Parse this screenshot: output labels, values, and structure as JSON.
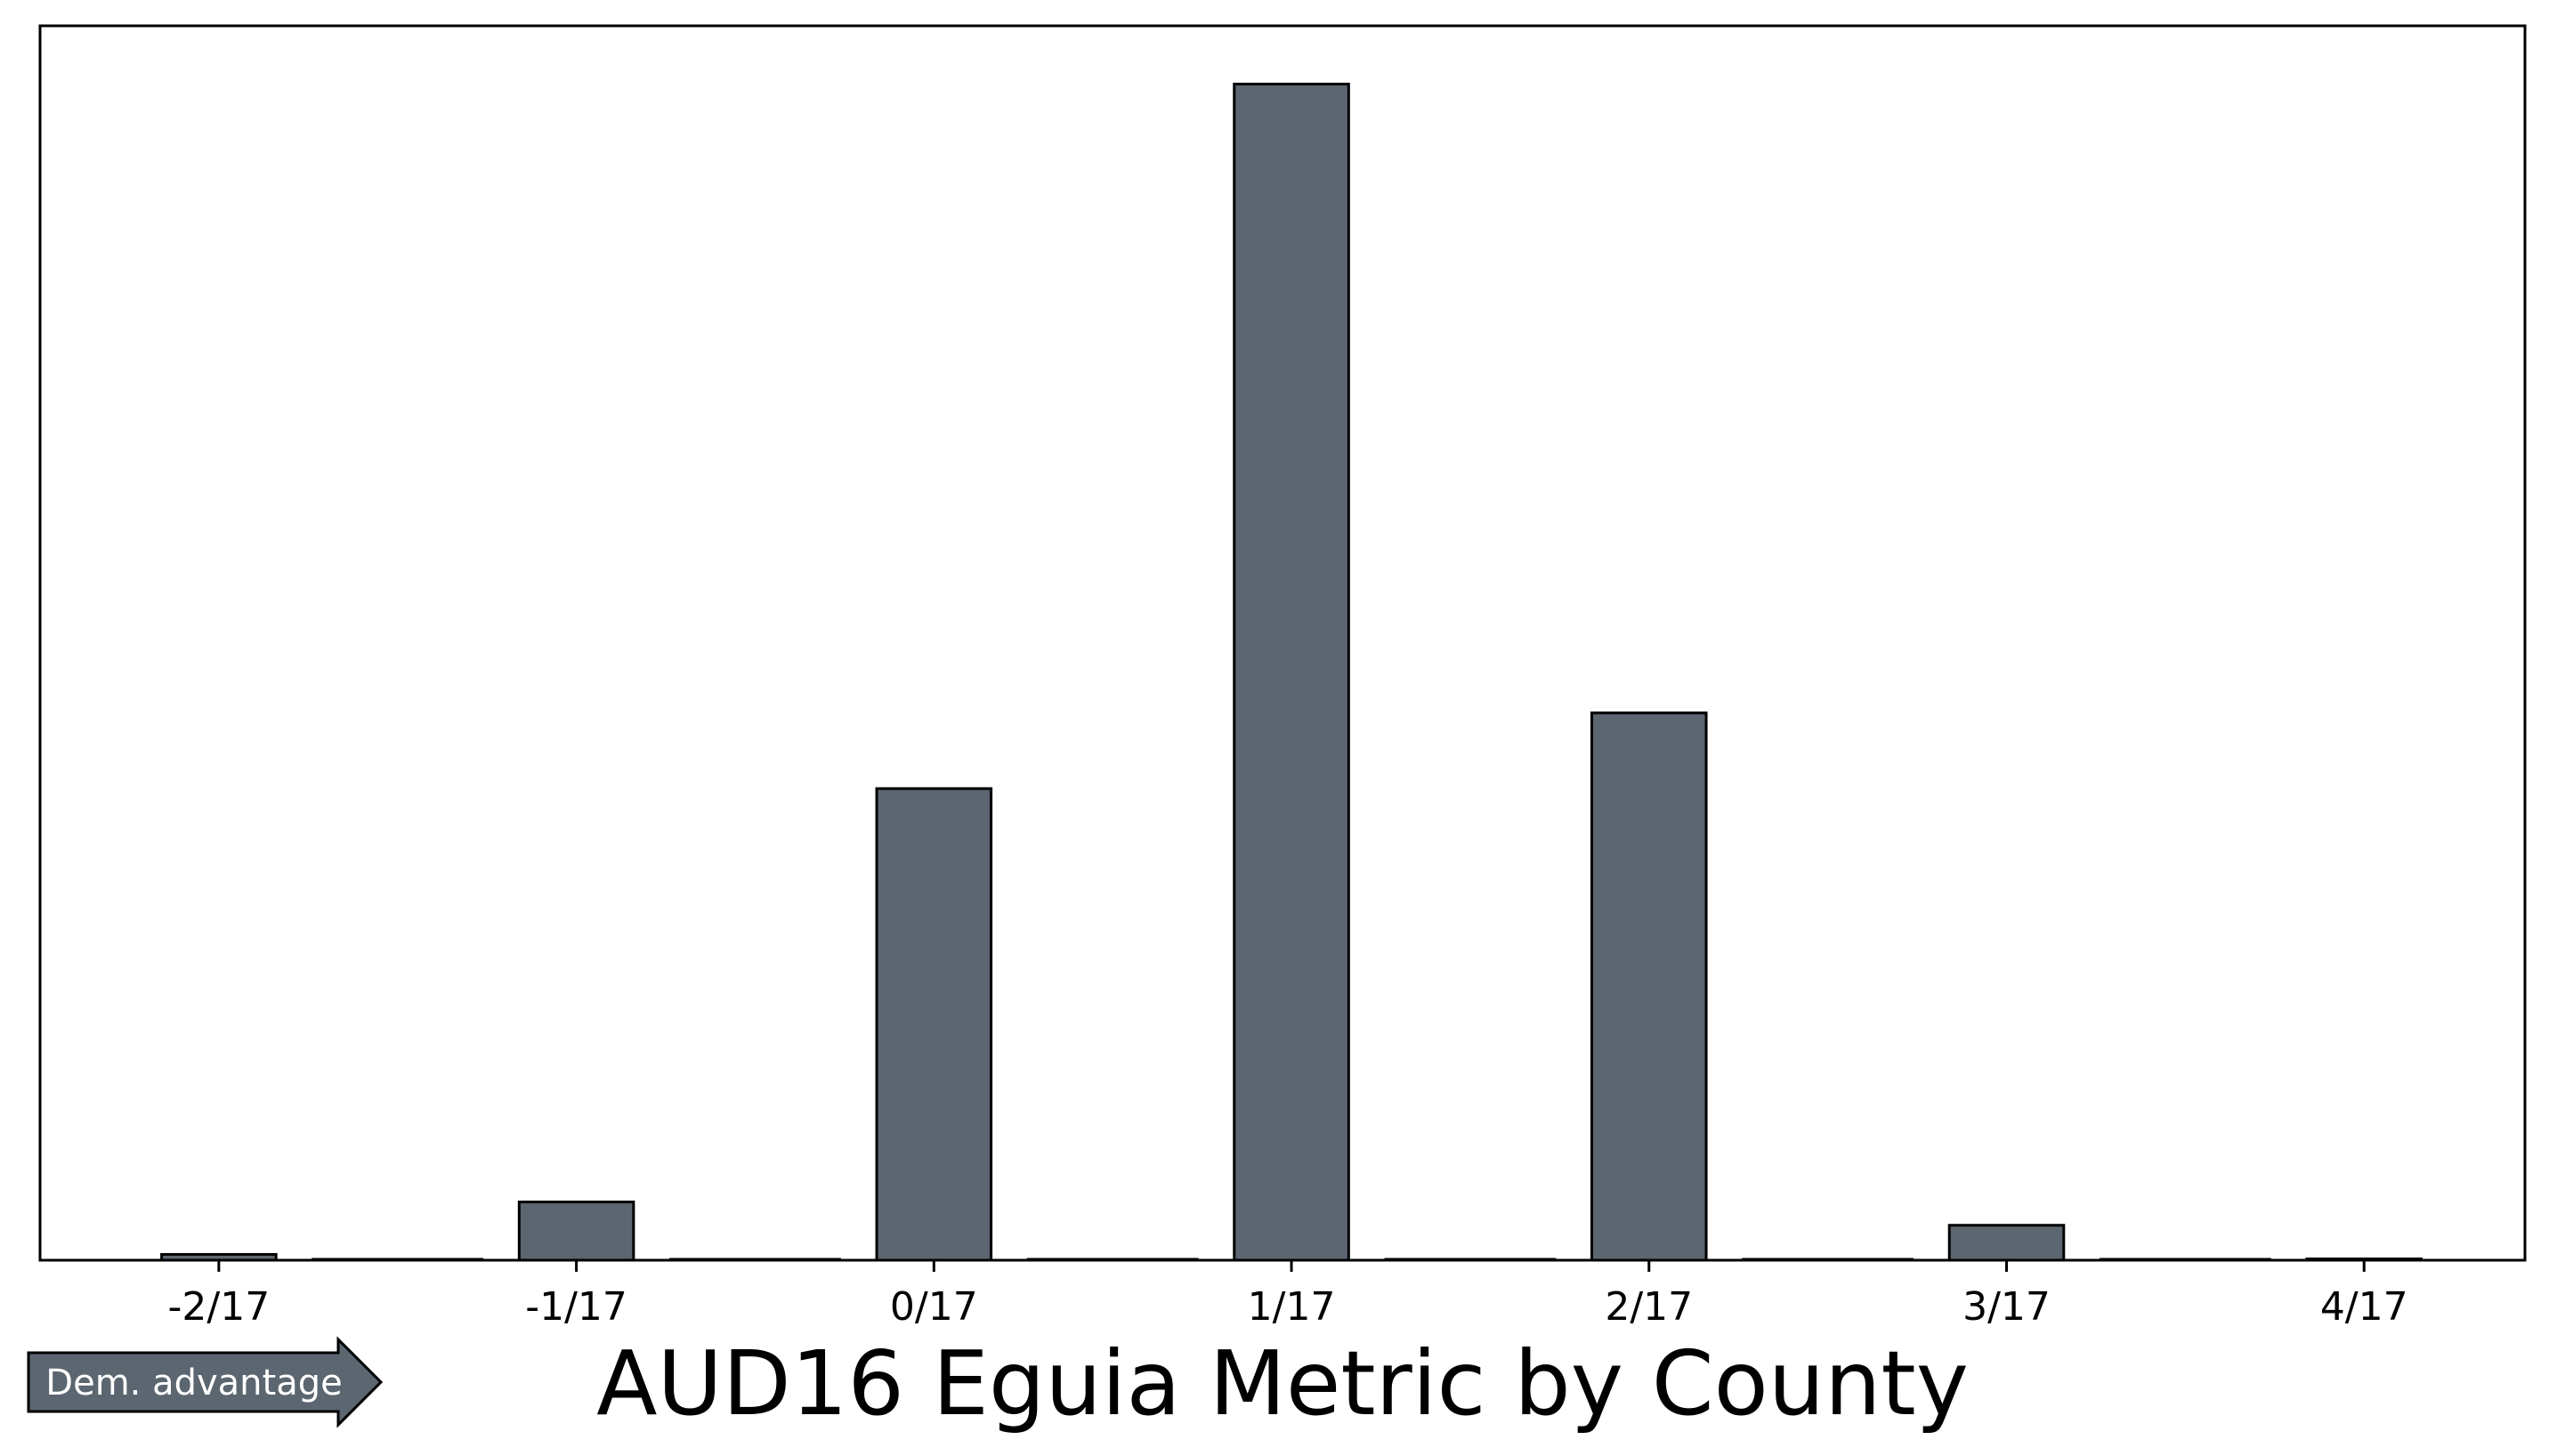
{
  "chart_data": {
    "type": "bar",
    "title": "AUD16 Eguia Metric by County",
    "tick_labels": [
      "-2/17",
      "-1/17",
      "0/17",
      "1/17",
      "2/17",
      "3/17",
      "4/17"
    ],
    "x_ticks": [
      -2,
      -1,
      0,
      1,
      2,
      3,
      4
    ],
    "bars": [
      {
        "x": -2,
        "label": "-2/17",
        "value": 0.1
      },
      {
        "x": -1,
        "label": "-1/17",
        "value": 1
      },
      {
        "x": 0,
        "label": "0/17",
        "value": 8.1
      },
      {
        "x": 1,
        "label": "1/17",
        "value": 20.2
      },
      {
        "x": 2,
        "label": "2/17",
        "value": 9.4
      },
      {
        "x": 3,
        "label": "3/17",
        "value": 0.6
      },
      {
        "x": 4,
        "label": "4/17",
        "value": 0
      }
    ],
    "xlim": [
      -2.5,
      4.45
    ],
    "ylim": [
      0,
      21.2
    ],
    "y_axis_visible": false,
    "grid": false,
    "bar_color": "#5b6670",
    "edge_color": "#000000"
  },
  "annotation": {
    "label": "Dem. advantage",
    "direction": "right",
    "fill_color": "#5b6670",
    "text_color": "#ffffff"
  }
}
